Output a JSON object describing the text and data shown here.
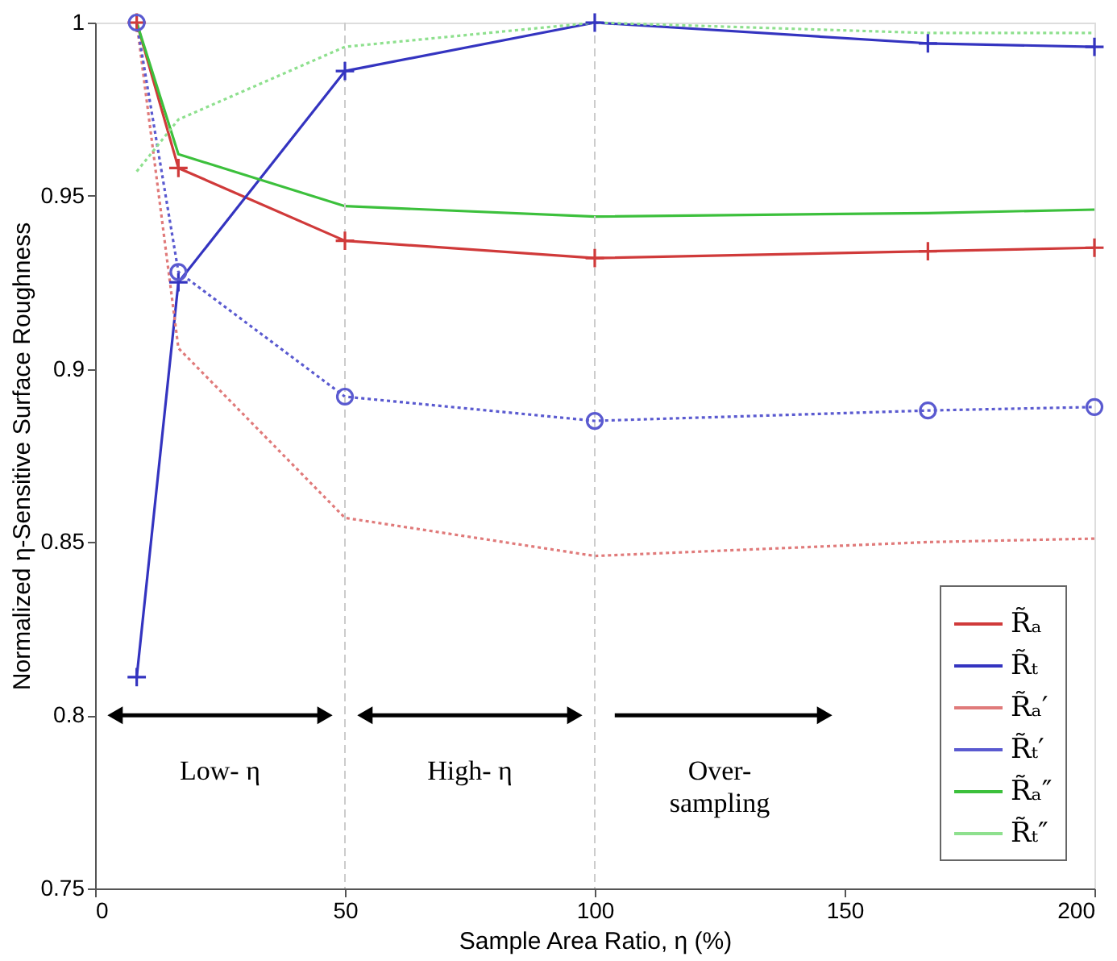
{
  "chart_data": {
    "type": "line",
    "xlabel": "Sample Area Ratio, η (%)",
    "ylabel": "Normalized η-Sensitive Surface Roughness",
    "x": [
      8.33,
      16.67,
      50,
      100,
      166.67,
      200
    ],
    "series": [
      {
        "name": "R̃ₐ",
        "color": "#d03a3a",
        "marker": "cross",
        "line_style": "solid",
        "values": [
          1.0,
          0.958,
          0.937,
          0.932,
          0.934,
          0.935
        ]
      },
      {
        "name": "R̃ₜ",
        "color": "#3434c0",
        "marker": "cross",
        "line_style": "solid",
        "values": [
          0.811,
          0.925,
          0.986,
          1.0,
          0.994,
          0.993
        ]
      },
      {
        "name": "R̃ₐ′",
        "color": "#e07a7a",
        "marker": "none",
        "line_style": "dotted",
        "values": [
          1.0,
          0.906,
          0.857,
          0.846,
          0.85,
          0.851
        ]
      },
      {
        "name": "R̃ₜ′",
        "color": "#5a5ad0",
        "marker": "circle",
        "line_style": "dotted",
        "values": [
          1.0,
          0.928,
          0.892,
          0.885,
          0.888,
          0.889
        ]
      },
      {
        "name": "R̃ₐ″",
        "color": "#3cc03c",
        "marker": "none",
        "line_style": "solid",
        "values": [
          1.0,
          0.962,
          0.947,
          0.944,
          0.945,
          0.946
        ]
      },
      {
        "name": "R̃ₜ″",
        "color": "#8ee08e",
        "marker": "none",
        "line_style": "dotted",
        "values": [
          0.957,
          0.972,
          0.993,
          1.0,
          0.997,
          0.997
        ]
      }
    ],
    "xlim": [
      0,
      200
    ],
    "xticks": [
      0,
      50,
      100,
      150,
      200
    ],
    "ylim": [
      0.75,
      1
    ],
    "yticks": [
      0.75,
      0.8,
      0.85,
      0.9,
      0.95,
      1
    ],
    "ref_lines": [
      {
        "axis": "x",
        "value": 50,
        "color": "#cccccc",
        "line_style": "dashed"
      },
      {
        "axis": "x",
        "value": 100,
        "color": "#cccccc",
        "line_style": "dashed"
      }
    ],
    "annotations": [
      "Low- η",
      "High- η",
      "Over-sampling"
    ],
    "grid": false,
    "legend": "bottom right"
  }
}
